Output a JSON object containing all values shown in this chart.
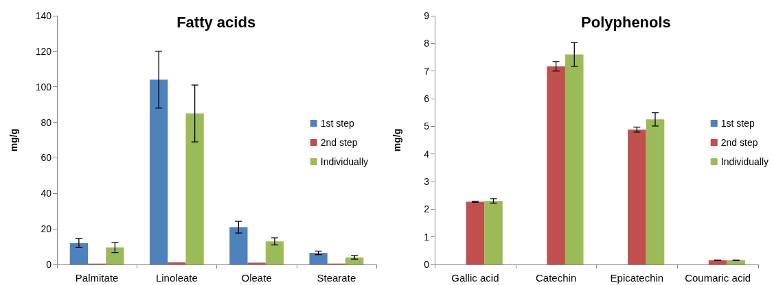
{
  "chart_data": [
    {
      "type": "bar",
      "title": "Fatty acids",
      "ylabel": "mg/g",
      "categories": [
        "Palmitate",
        "Linoleate",
        "Oleate",
        "Stearate"
      ],
      "series": [
        {
          "name": "1st step",
          "color": "#4f81bd",
          "values": [
            12,
            104,
            21,
            6.5
          ],
          "errors": [
            2.5,
            16,
            3.3,
            1
          ]
        },
        {
          "name": "2nd step",
          "color": "#c0504d",
          "values": [
            0.5,
            1.2,
            1,
            0.5
          ],
          "errors": [
            null,
            null,
            null,
            null
          ]
        },
        {
          "name": "Individually",
          "color": "#9bbb59",
          "values": [
            9.5,
            85,
            13,
            4
          ],
          "errors": [
            2.8,
            16,
            2,
            1
          ]
        }
      ],
      "ylim": [
        0,
        140
      ],
      "yticks": [
        0,
        20,
        40,
        60,
        80,
        100,
        120,
        140
      ],
      "legend": "right",
      "grid": false
    },
    {
      "type": "bar",
      "title": "Polyphenols",
      "ylabel": "mg/g",
      "categories": [
        "Gallic acid",
        "Catechin",
        "Epicatechin",
        "Coumaric acid"
      ],
      "series": [
        {
          "name": "1st step",
          "color": "#4f81bd",
          "values": [
            null,
            null,
            null,
            null
          ],
          "errors": [
            null,
            null,
            null,
            null
          ]
        },
        {
          "name": "2nd step",
          "color": "#c0504d",
          "values": [
            2.27,
            7.17,
            4.88,
            0.15
          ],
          "errors": [
            0.02,
            0.17,
            0.09,
            0.01
          ]
        },
        {
          "name": "Individually",
          "color": "#9bbb59",
          "values": [
            2.3,
            7.6,
            5.25,
            0.15
          ],
          "errors": [
            0.08,
            0.43,
            0.24,
            0.01
          ]
        }
      ],
      "ylim": [
        0,
        9
      ],
      "yticks": [
        0,
        1,
        2,
        3,
        4,
        5,
        6,
        7,
        8,
        9
      ],
      "legend": "right",
      "grid": false
    }
  ]
}
